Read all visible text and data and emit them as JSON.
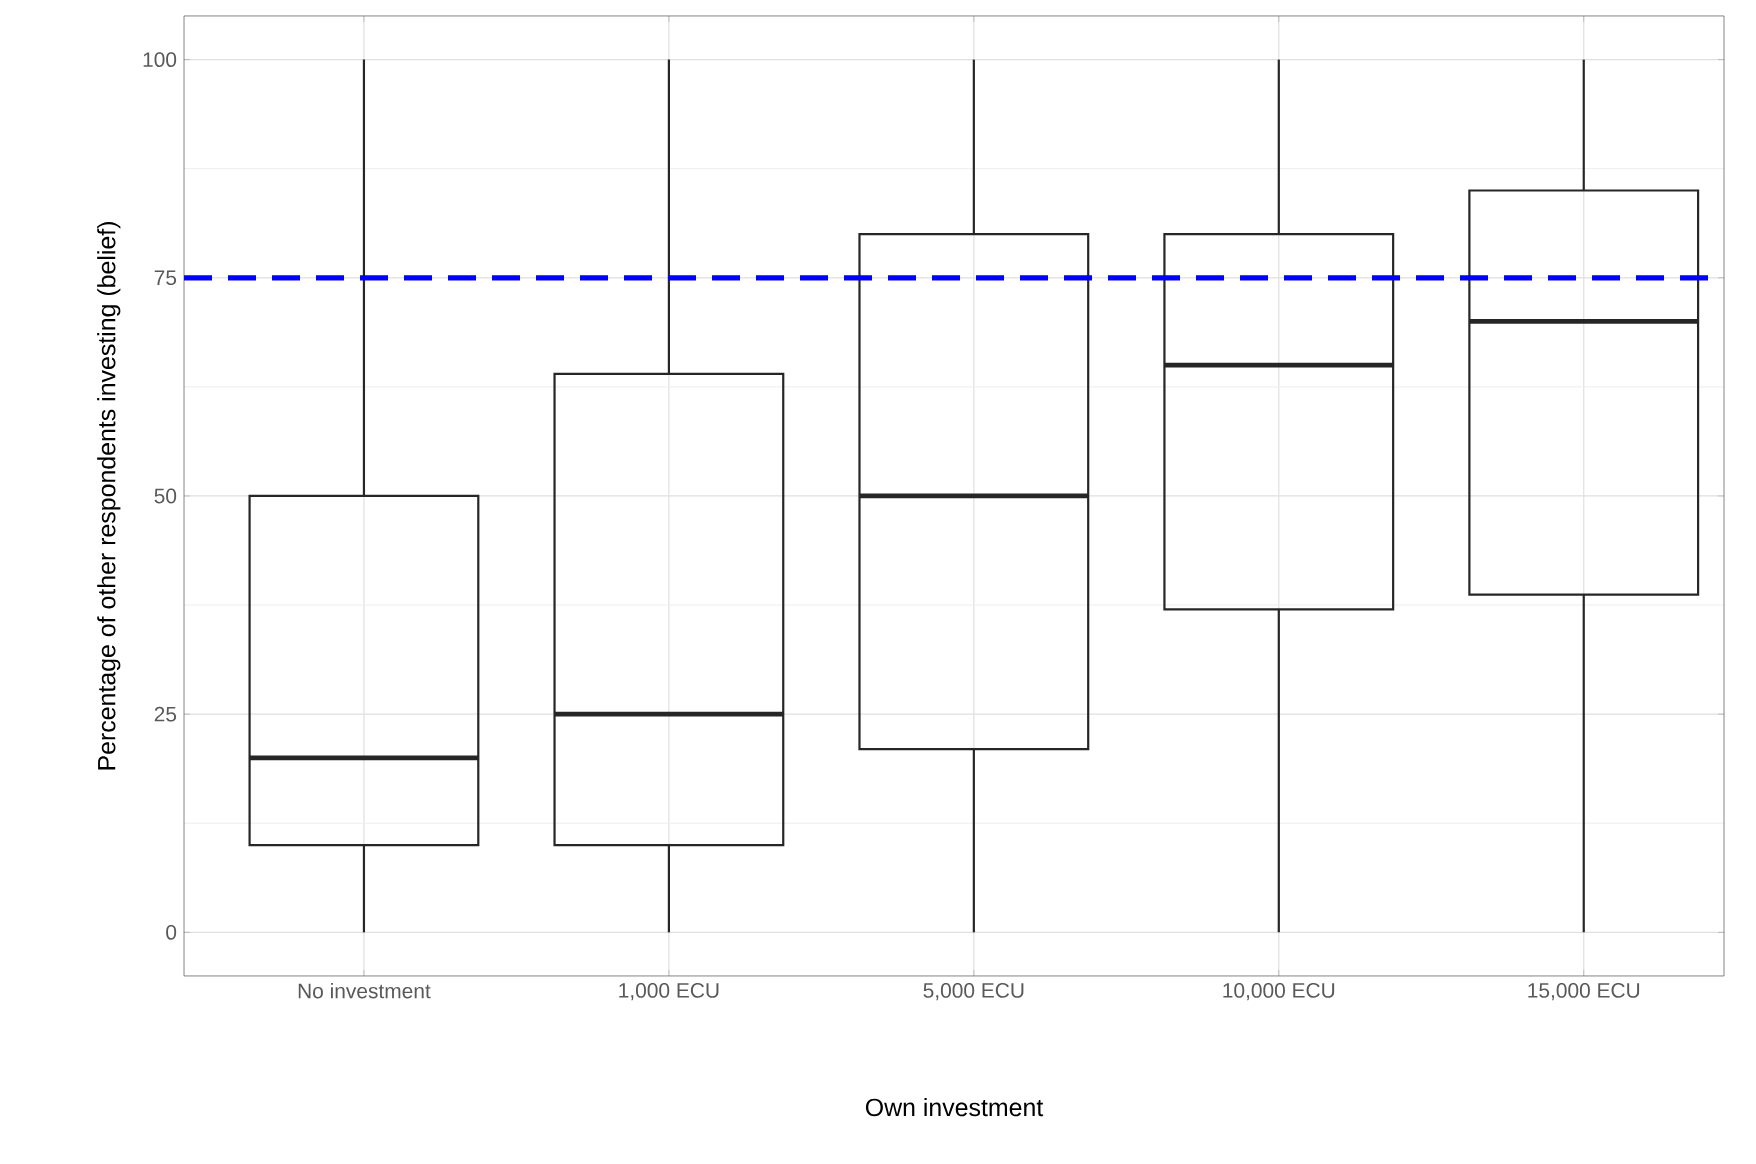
{
  "chart_data": {
    "type": "box",
    "xlabel": "Own investment",
    "ylabel": "Percentage of other respondents investing (belief)",
    "categories": [
      "No investment",
      "1,000 ECU",
      "5,000 ECU",
      "10,000 ECU",
      "15,000 ECU"
    ],
    "boxes": [
      {
        "low": 0,
        "q1": 10,
        "median": 20,
        "q3": 50,
        "high": 100
      },
      {
        "low": 0,
        "q1": 10,
        "median": 25,
        "q3": 64,
        "high": 100
      },
      {
        "low": 0,
        "q1": 21,
        "median": 50,
        "q3": 80,
        "high": 100
      },
      {
        "low": 0,
        "q1": 37,
        "median": 65,
        "q3": 80,
        "high": 100
      },
      {
        "low": 0,
        "q1": 38.7,
        "median": 70,
        "q3": 85,
        "high": 100
      }
    ],
    "ylim": [
      -5,
      105
    ],
    "yticks": [
      0,
      25,
      50,
      75,
      100
    ],
    "grid": true,
    "ref_lines": [
      {
        "axis": "y",
        "value": 75,
        "color": "#0000ff",
        "line_style": "dashed"
      }
    ]
  }
}
